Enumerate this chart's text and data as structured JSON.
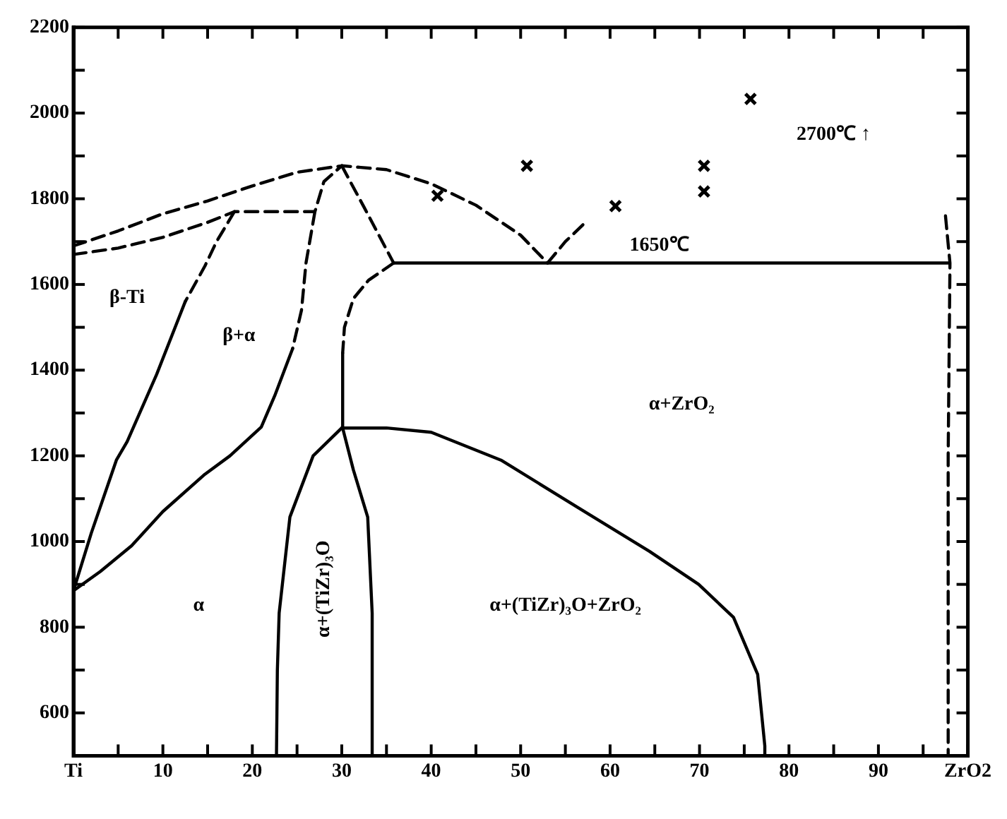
{
  "chart_data": {
    "type": "line",
    "xlim": [
      0,
      100
    ],
    "xticks": [
      {
        "value": 0,
        "label": "Ti"
      },
      {
        "value": 5,
        "label": null
      },
      10,
      {
        "value": 15,
        "label": null
      },
      20,
      {
        "value": 25,
        "label": null
      },
      30,
      {
        "value": 35,
        "label": null
      },
      40,
      {
        "value": 45,
        "label": null
      },
      50,
      {
        "value": 55,
        "label": null
      },
      60,
      {
        "value": 65,
        "label": null
      },
      70,
      {
        "value": 75,
        "label": null
      },
      80,
      {
        "value": 85,
        "label": null
      },
      90,
      {
        "value": 95,
        "label": null
      },
      {
        "value": 100,
        "label": "ZrO2"
      }
    ],
    "ylim": [
      500,
      2200
    ],
    "yticks": [
      600,
      {
        "value": 700,
        "label": null
      },
      800,
      {
        "value": 900,
        "label": null
      },
      1000,
      {
        "value": 1100,
        "label": null
      },
      1200,
      {
        "value": 1300,
        "label": null
      },
      1400,
      {
        "value": 1500,
        "label": null
      },
      1600,
      {
        "value": 1700,
        "label": null
      },
      1800,
      {
        "value": 1900,
        "label": null
      },
      2000,
      {
        "value": 2100,
        "label": null
      },
      2200
    ],
    "grid": false,
    "legend": false,
    "marker": "none",
    "series": [
      {
        "color": "#000000",
        "line_style": "dashed",
        "x": [
          0,
          5,
          10,
          15,
          20,
          25,
          30,
          35,
          40,
          45,
          50,
          53
        ],
        "values": [
          1690,
          1725,
          1765,
          1795,
          1830,
          1862,
          1877,
          1868,
          1835,
          1785,
          1715,
          1650
        ]
      },
      {
        "color": "#000000",
        "line_style": "dashed",
        "x": [
          53,
          55,
          57
        ],
        "values": [
          1650,
          1700,
          1740
        ]
      },
      {
        "color": "#000000",
        "line_style": "dashed",
        "x": [
          0,
          5,
          10,
          15,
          18,
          27,
          28,
          30
        ],
        "values": [
          1670,
          1685,
          1710,
          1745,
          1770,
          1770,
          1840,
          1877
        ]
      },
      {
        "color": "#000000",
        "line_style": "dashed",
        "x": [
          27,
          26,
          25.5,
          24.5
        ],
        "values": [
          1770,
          1650,
          1540,
          1450
        ]
      },
      {
        "color": "#000000",
        "line_style": "solid",
        "x": [
          24.5,
          22.5,
          21,
          17.5,
          14.7,
          10,
          6.5,
          3,
          0
        ],
        "values": [
          1450,
          1340,
          1267,
          1200,
          1157,
          1070,
          990,
          930,
          885
        ]
      },
      {
        "color": "#000000",
        "line_style": "dashed",
        "x": [
          18,
          16,
          14.7,
          12.5
        ],
        "values": [
          1770,
          1700,
          1643,
          1560
        ]
      },
      {
        "color": "#000000",
        "line_style": "solid",
        "x": [
          12.5,
          9.3,
          6,
          4.8,
          2,
          0
        ],
        "values": [
          1560,
          1390,
          1233,
          1190,
          1020,
          885
        ]
      },
      {
        "color": "#000000",
        "line_style": "dashed",
        "x": [
          30,
          32.5,
          35.8
        ],
        "values": [
          1877,
          1780,
          1650
        ]
      },
      {
        "color": "#000000",
        "line_style": "solid",
        "x": [
          35.8,
          97.8
        ],
        "values": [
          1650,
          1650
        ]
      },
      {
        "color": "#000000",
        "line_style": "dashed",
        "x": [
          35.8,
          33,
          31.3,
          30.3,
          30.1
        ],
        "values": [
          1650,
          1610,
          1567,
          1500,
          1440
        ]
      },
      {
        "color": "#000000",
        "line_style": "solid",
        "x": [
          22.7,
          22.8,
          23,
          24.2,
          26.8,
          30
        ],
        "values": [
          500,
          700,
          833,
          1057,
          1200,
          1265
        ]
      },
      {
        "color": "#000000",
        "line_style": "solid",
        "x": [
          30.1,
          30.1,
          31.3,
          32.9,
          33.4,
          33.4
        ],
        "values": [
          1440,
          1265,
          1167,
          1057,
          833,
          500
        ]
      },
      {
        "color": "#000000",
        "line_style": "solid",
        "x": [
          30,
          35,
          40,
          47.8,
          56.6,
          64.4,
          69.9,
          73.8,
          76.5,
          77.3,
          77.3
        ],
        "values": [
          1265,
          1265,
          1255,
          1190,
          1077,
          977,
          900,
          823,
          690,
          523,
          500
        ]
      },
      {
        "color": "#000000",
        "line_style": "dashed",
        "x": [
          97.5,
          98,
          97.8,
          97.8
        ],
        "values": [
          1760,
          1650,
          1200,
          500
        ]
      },
      {
        "type": "scatter",
        "color": "#000000",
        "marker": "cross",
        "x": [
          40.7,
          50.7,
          60.6,
          70.5,
          70.5,
          75.7
        ],
        "values": [
          1807,
          1877,
          1783,
          1877,
          1817,
          2033
        ]
      }
    ],
    "annotations": [
      "2700℃ ↑",
      "1650℃",
      "β-Ti",
      "β+α",
      "α+ZrO₂",
      "α",
      "α+(TiZr)₃O",
      "α+(TiZr)₃O+ZrO₂"
    ]
  }
}
